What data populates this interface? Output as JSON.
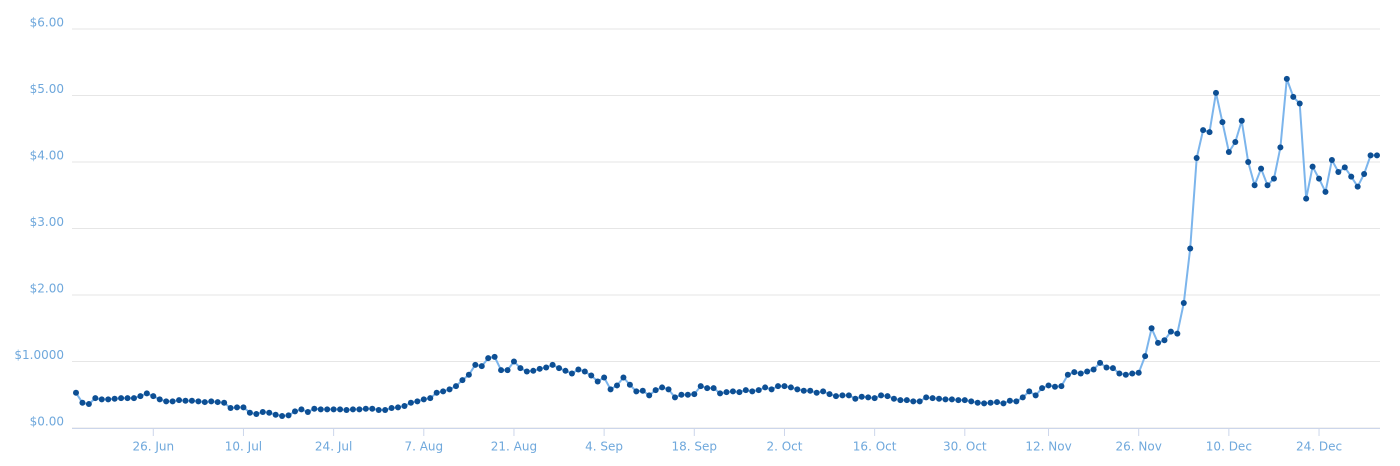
{
  "chart_data": {
    "type": "line",
    "categories": [
      null,
      null,
      null,
      null,
      null,
      null,
      null,
      null,
      null,
      null,
      null,
      null,
      "26. Jun",
      null,
      null,
      null,
      null,
      null,
      null,
      null,
      null,
      null,
      null,
      null,
      null,
      null,
      "10. Jul",
      null,
      null,
      null,
      null,
      null,
      null,
      null,
      null,
      null,
      null,
      null,
      null,
      null,
      "24. Jul",
      null,
      null,
      null,
      null,
      null,
      null,
      null,
      null,
      null,
      null,
      null,
      null,
      null,
      "7. Aug",
      null,
      null,
      null,
      null,
      null,
      null,
      null,
      null,
      null,
      null,
      null,
      null,
      null,
      "21. Aug",
      null,
      null,
      null,
      null,
      null,
      null,
      null,
      null,
      null,
      null,
      null,
      null,
      null,
      "4. Sep",
      null,
      null,
      null,
      null,
      null,
      null,
      null,
      null,
      null,
      null,
      null,
      null,
      null,
      "18. Sep",
      null,
      null,
      null,
      null,
      null,
      null,
      null,
      null,
      null,
      null,
      null,
      null,
      null,
      "2. Oct",
      null,
      null,
      null,
      null,
      null,
      null,
      null,
      null,
      null,
      null,
      null,
      null,
      null,
      "16. Oct",
      null,
      null,
      null,
      null,
      null,
      null,
      null,
      null,
      null,
      null,
      null,
      null,
      null,
      "30. Oct",
      null,
      null,
      null,
      null,
      null,
      null,
      null,
      null,
      null,
      null,
      null,
      null,
      "12. Nov",
      null,
      null,
      null,
      null,
      null,
      null,
      null,
      null,
      null,
      null,
      null,
      null,
      null,
      "26. Nov",
      null,
      null,
      null,
      null,
      null,
      null,
      null,
      null,
      null,
      null,
      null,
      null,
      null,
      "10. Dec",
      null,
      null,
      null,
      null,
      null,
      null,
      null,
      null,
      null,
      null,
      null,
      null,
      null,
      "24. Dec",
      null,
      null,
      null,
      null,
      null,
      null,
      null,
      null,
      null
    ],
    "series": [
      {
        "line_color": "#7cb5ec",
        "color": "#0d4f94",
        "values": [
          0.53,
          0.38,
          0.36,
          0.45,
          0.43,
          0.43,
          0.44,
          0.45,
          0.45,
          0.45,
          0.48,
          0.52,
          0.48,
          0.43,
          0.4,
          0.4,
          0.42,
          0.41,
          0.41,
          0.4,
          0.39,
          0.4,
          0.39,
          0.38,
          0.3,
          0.31,
          0.31,
          0.23,
          0.21,
          0.24,
          0.23,
          0.2,
          0.18,
          0.19,
          0.25,
          0.28,
          0.24,
          0.29,
          0.28,
          0.28,
          0.28,
          0.28,
          0.27,
          0.28,
          0.28,
          0.29,
          0.29,
          0.27,
          0.27,
          0.3,
          0.31,
          0.33,
          0.38,
          0.4,
          0.43,
          0.45,
          0.53,
          0.55,
          0.58,
          0.63,
          0.72,
          0.8,
          0.95,
          0.93,
          1.05,
          1.07,
          0.87,
          0.87,
          1.0,
          0.9,
          0.85,
          0.86,
          0.89,
          0.91,
          0.95,
          0.9,
          0.86,
          0.82,
          0.88,
          0.85,
          0.79,
          0.7,
          0.76,
          0.58,
          0.64,
          0.76,
          0.65,
          0.55,
          0.56,
          0.49,
          0.57,
          0.61,
          0.58,
          0.46,
          0.5,
          0.5,
          0.51,
          0.63,
          0.6,
          0.6,
          0.52,
          0.54,
          0.55,
          0.54,
          0.57,
          0.55,
          0.57,
          0.61,
          0.58,
          0.63,
          0.63,
          0.61,
          0.58,
          0.56,
          0.56,
          0.53,
          0.55,
          0.51,
          0.48,
          0.49,
          0.49,
          0.44,
          0.47,
          0.46,
          0.45,
          0.49,
          0.48,
          0.44,
          0.42,
          0.42,
          0.4,
          0.4,
          0.46,
          0.45,
          0.44,
          0.43,
          0.43,
          0.42,
          0.42,
          0.4,
          0.38,
          0.37,
          0.38,
          0.39,
          0.37,
          0.41,
          0.4,
          0.46,
          0.55,
          0.49,
          0.6,
          0.64,
          0.62,
          0.63,
          0.8,
          0.84,
          0.82,
          0.85,
          0.88,
          0.98,
          0.91,
          0.9,
          0.82,
          0.8,
          0.82,
          0.83,
          1.08,
          1.5,
          1.28,
          1.32,
          1.45,
          1.42,
          1.88,
          2.7,
          4.06,
          4.48,
          4.45,
          5.04,
          4.6,
          4.15,
          4.3,
          4.62,
          4.0,
          3.65,
          3.9,
          3.65,
          3.75,
          4.22,
          5.25,
          4.98,
          4.88,
          3.45,
          3.93,
          3.75,
          3.55,
          4.03,
          3.85,
          3.92,
          3.78,
          3.63,
          3.82,
          4.1,
          4.1
        ]
      }
    ],
    "ylim": [
      0,
      6
    ],
    "yticks": [
      {
        "value": 0,
        "label": "$0.00"
      },
      {
        "value": 1,
        "label": "$1.0000"
      },
      {
        "value": 2,
        "label": "$2.00"
      },
      {
        "value": 3,
        "label": "$3.00"
      },
      {
        "value": 4,
        "label": "$4.00"
      },
      {
        "value": 5,
        "label": "$5.00"
      },
      {
        "value": 6,
        "label": "$6.00"
      }
    ],
    "grid": true
  }
}
